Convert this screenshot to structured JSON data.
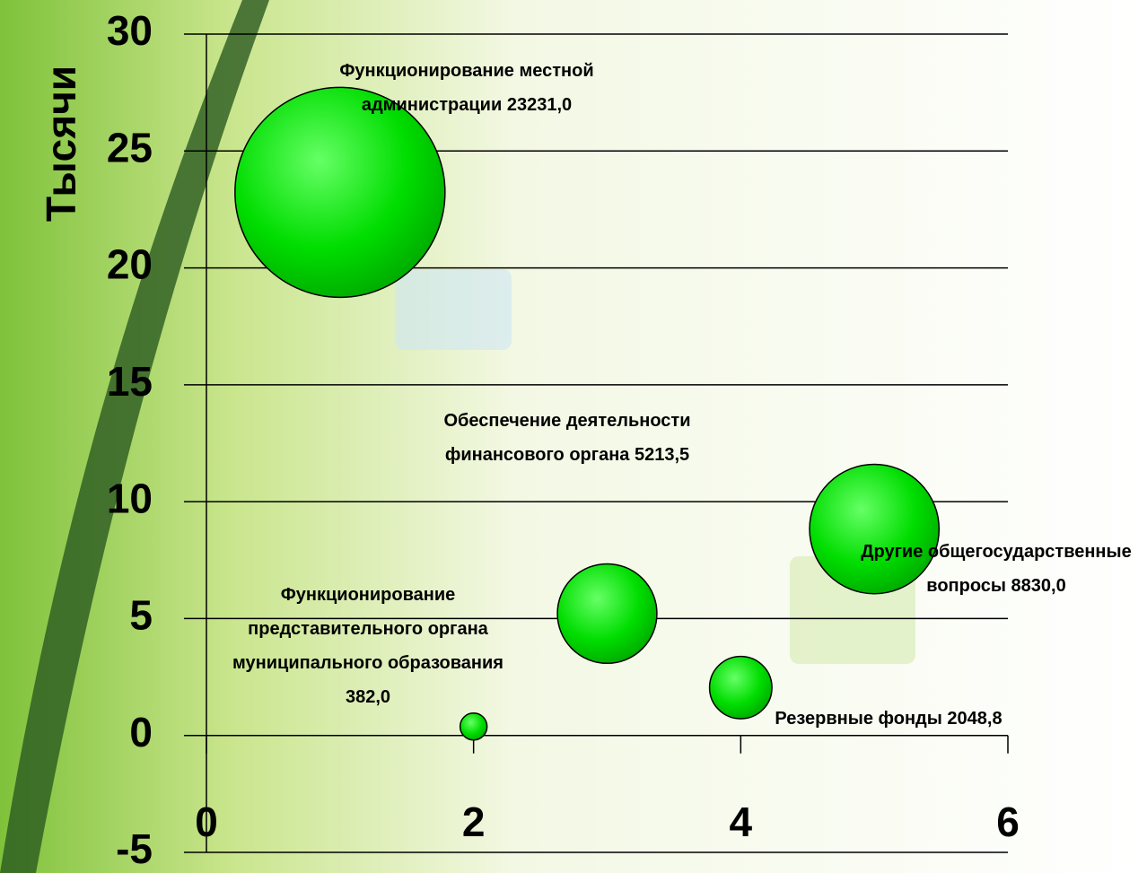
{
  "chart_data": {
    "type": "bubble",
    "y_axis_label": "Тысячи",
    "categories": [
      "Функционирование местной администрации",
      "Функционирование представительного органа муниципального образования",
      "Обеспечение деятельности финансового органа",
      "Резервные фонды",
      "Другие общегосударственные вопросы"
    ],
    "x": [
      1,
      2,
      3,
      4,
      5
    ],
    "values": [
      23.231,
      0.382,
      5.2135,
      2.0488,
      8.83
    ],
    "sizes": [
      23.231,
      0.382,
      5.2135,
      2.0488,
      8.83
    ],
    "value_labels": [
      "23231,0",
      "382,0",
      "5213,5",
      "2048,8",
      "8830,0"
    ],
    "color": "#00dd00",
    "xlim": [
      0,
      6
    ],
    "xticks": [
      0,
      2,
      4,
      6
    ],
    "ylim": [
      -5,
      30
    ],
    "yticks": [
      -5,
      0,
      5,
      10,
      15,
      20,
      25,
      30
    ],
    "grid": true
  }
}
